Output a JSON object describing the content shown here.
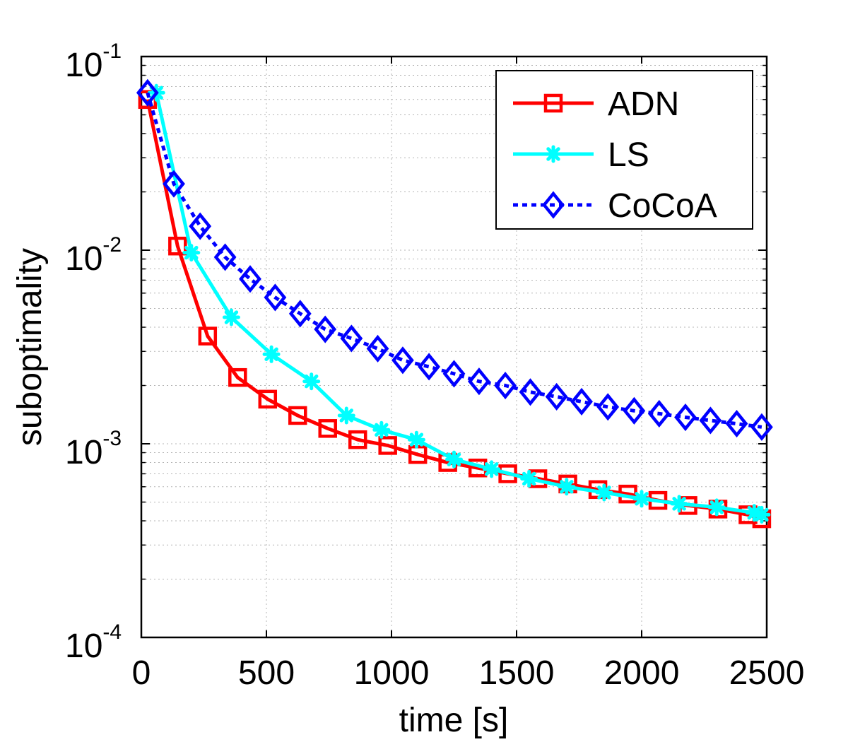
{
  "chart_data": {
    "type": "line",
    "xlabel": "time [s]",
    "ylabel": "suboptimality",
    "xscale": "linear",
    "yscale": "log",
    "xlim": [
      0,
      2500
    ],
    "ylim": [
      0.0001,
      0.1
    ],
    "grid": true,
    "legend_position": "top-right",
    "x_ticks": [
      {
        "value": 0,
        "label": "0"
      },
      {
        "value": 500,
        "label": "500"
      },
      {
        "value": 1000,
        "label": "1000"
      },
      {
        "value": 1500,
        "label": "1500"
      },
      {
        "value": 2000,
        "label": "2000"
      },
      {
        "value": 2500,
        "label": "2500"
      }
    ],
    "y_ticks": [
      {
        "value": 0.1,
        "base": "10",
        "exponent": "-1"
      },
      {
        "value": 0.01,
        "base": "10",
        "exponent": "-2"
      },
      {
        "value": 0.001,
        "base": "10",
        "exponent": "-3"
      },
      {
        "value": 0.0001,
        "base": "10",
        "exponent": "-4"
      }
    ],
    "series": [
      {
        "name": "ADN",
        "color": "#ff0000",
        "line_style": "solid",
        "marker": "square",
        "x": [
          25,
          145,
          265,
          385,
          505,
          625,
          745,
          865,
          985,
          1105,
          1225,
          1345,
          1465,
          1585,
          1705,
          1825,
          1945,
          2065,
          2185,
          2305,
          2425,
          2480
        ],
        "y": [
          0.06,
          0.0105,
          0.0036,
          0.0022,
          0.0017,
          0.0014,
          0.0012,
          0.00105,
          0.00098,
          0.00088,
          0.0008,
          0.00075,
          0.0007,
          0.00066,
          0.00062,
          0.00058,
          0.00055,
          0.00051,
          0.00048,
          0.00046,
          0.00043,
          0.00041
        ]
      },
      {
        "name": "LS",
        "color": "#00ffff",
        "line_style": "solid",
        "marker": "asterisk",
        "x": [
          60,
          200,
          360,
          520,
          680,
          820,
          960,
          1100,
          1250,
          1400,
          1550,
          1700,
          1850,
          2000,
          2150,
          2300,
          2450,
          2480
        ],
        "y": [
          0.065,
          0.0097,
          0.0045,
          0.0029,
          0.0021,
          0.0014,
          0.00118,
          0.00105,
          0.00083,
          0.00074,
          0.00066,
          0.0006,
          0.00056,
          0.00052,
          0.00049,
          0.00047,
          0.00044,
          0.00043
        ]
      },
      {
        "name": "CoCoA",
        "color": "#0000ff",
        "line_style": "dotted",
        "marker": "diamond",
        "x": [
          25,
          130,
          235,
          335,
          435,
          535,
          635,
          735,
          840,
          945,
          1045,
          1150,
          1250,
          1350,
          1455,
          1555,
          1660,
          1760,
          1865,
          1970,
          2070,
          2175,
          2275,
          2380,
          2480
        ],
        "y": [
          0.065,
          0.022,
          0.0133,
          0.0092,
          0.0071,
          0.0057,
          0.0047,
          0.0039,
          0.0035,
          0.0031,
          0.0027,
          0.0025,
          0.0023,
          0.0021,
          0.002,
          0.00185,
          0.00175,
          0.00165,
          0.00155,
          0.00148,
          0.00143,
          0.00137,
          0.00132,
          0.00127,
          0.00122
        ]
      }
    ]
  }
}
